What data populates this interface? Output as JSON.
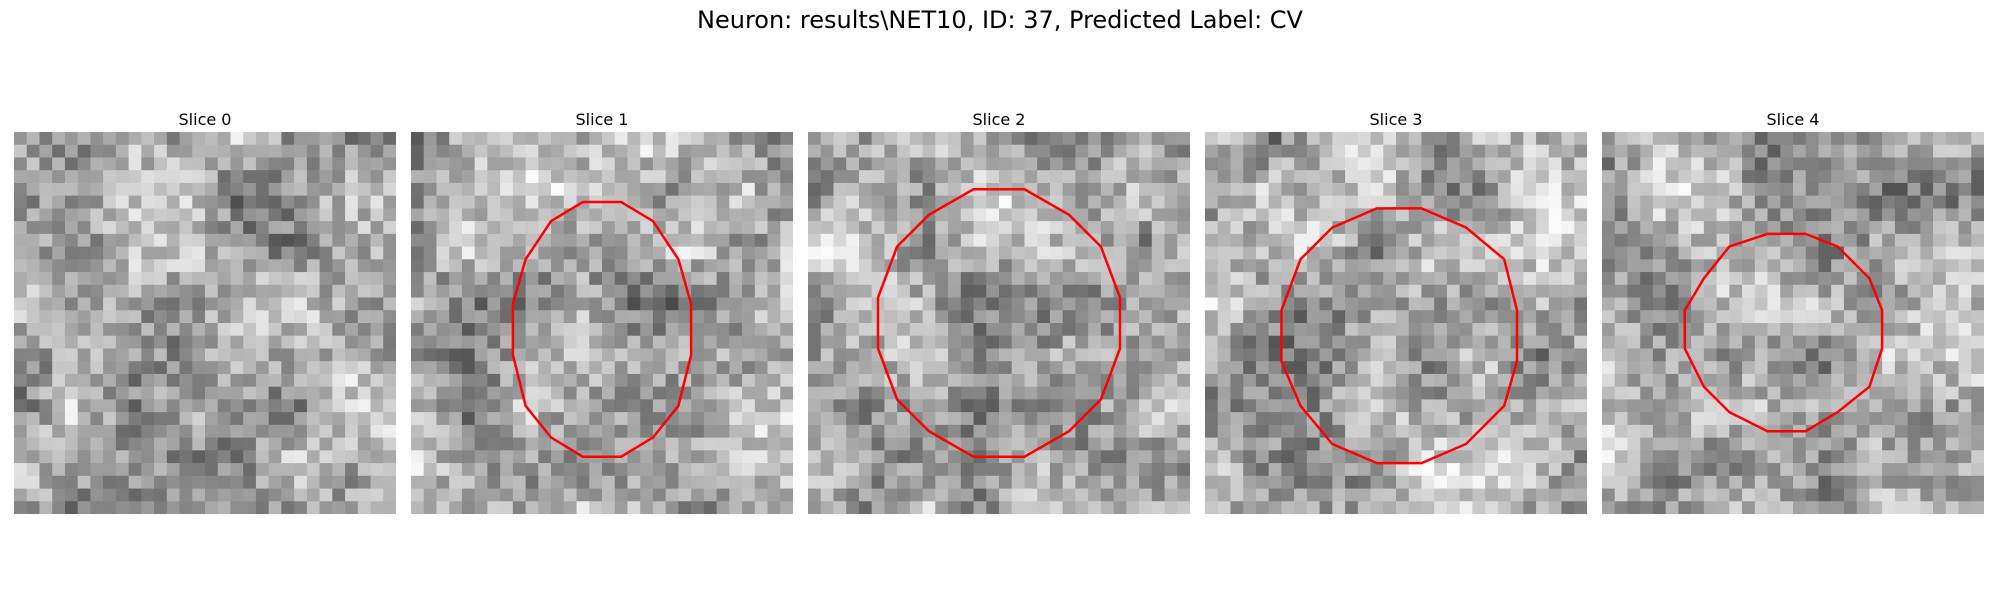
{
  "figure": {
    "title": "Neuron: results\\NET10, ID: 37, Predicted Label: CV"
  },
  "panels": [
    {
      "label": "Slice 0",
      "contour": null
    },
    {
      "label": "Slice 1",
      "contour": {
        "color": "#ff0000",
        "rx_frac": 0.24,
        "ry_frac": 0.34,
        "cx_frac": 0.5,
        "cy_frac": 0.52
      }
    },
    {
      "label": "Slice 2",
      "contour": {
        "color": "#ff0000",
        "rx_frac": 0.32,
        "ry_frac": 0.35,
        "cx_frac": 0.5,
        "cy_frac": 0.5
      }
    },
    {
      "label": "Slice 3",
      "contour": {
        "color": "#ff0000",
        "rx_frac": 0.32,
        "ry_frac": 0.34,
        "cx_frac": 0.51,
        "cy_frac": 0.53
      }
    },
    {
      "label": "Slice 4",
      "contour": {
        "color": "#ff0000",
        "rx_frac": 0.26,
        "ry_frac": 0.26,
        "cx_frac": 0.48,
        "cy_frac": 0.52
      }
    }
  ],
  "image": {
    "grid_size": 30,
    "colormap": "gray"
  }
}
